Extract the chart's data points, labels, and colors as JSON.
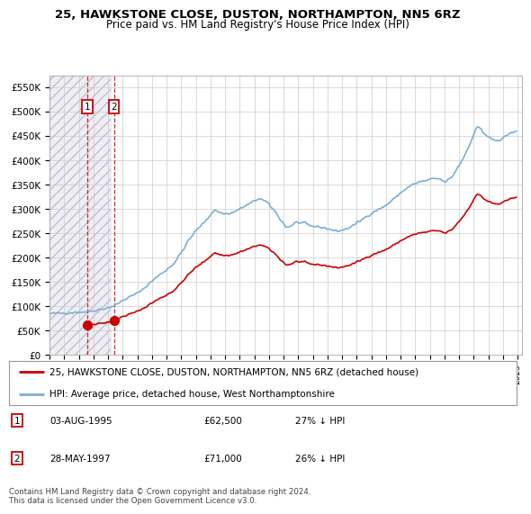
{
  "title_line1": "25, HAWKSTONE CLOSE, DUSTON, NORTHAMPTON, NN5 6RZ",
  "title_line2": "Price paid vs. HM Land Registry's House Price Index (HPI)",
  "hpi_color": "#7bafd4",
  "price_color": "#cc0000",
  "sale1_x": 1995.583,
  "sale1_price": 62500,
  "sale2_x": 1997.4,
  "sale2_price": 71000,
  "legend_entry1": "25, HAWKSTONE CLOSE, DUSTON, NORTHAMPTON, NN5 6RZ (detached house)",
  "legend_entry2": "HPI: Average price, detached house, West Northamptonshire",
  "table_row1": [
    "1",
    "03-AUG-1995",
    "£62,500",
    "27% ↓ HPI"
  ],
  "table_row2": [
    "2",
    "28-MAY-1997",
    "£71,000",
    "26% ↓ HPI"
  ],
  "footnote": "Contains HM Land Registry data © Crown copyright and database right 2024.\nThis data is licensed under the Open Government Licence v3.0.",
  "ylim_min": 0,
  "ylim_max": 575000,
  "yticks": [
    0,
    50000,
    100000,
    150000,
    200000,
    250000,
    300000,
    350000,
    400000,
    450000,
    500000,
    550000
  ],
  "ytick_labels": [
    "£0",
    "£50K",
    "£100K",
    "£150K",
    "£200K",
    "£250K",
    "£300K",
    "£350K",
    "£400K",
    "£450K",
    "£500K",
    "£550K"
  ],
  "grid_color": "#cccccc",
  "hatch_color": "#d8d8e8",
  "xlim_min": 1993.0,
  "xlim_max": 2025.3,
  "annotation_edgecolor": "#cc0000"
}
